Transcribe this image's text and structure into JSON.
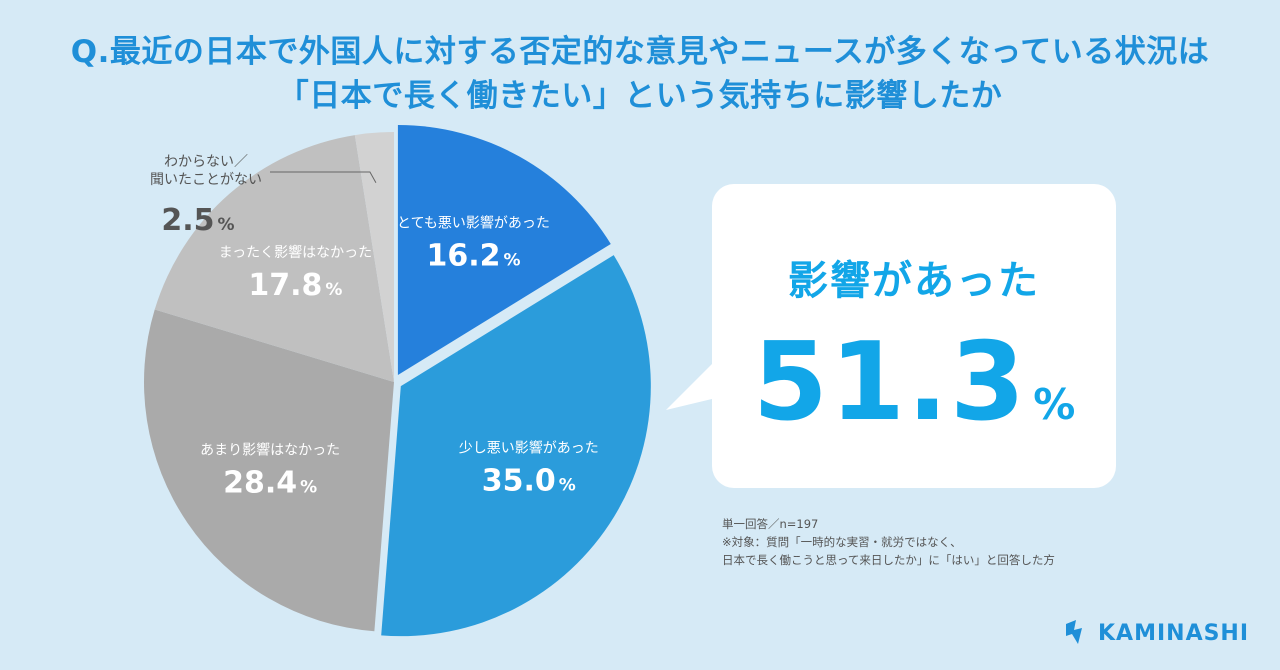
{
  "title": {
    "line1": "Q.最近の日本で外国人に対する否定的な意見やニュースが多くなっている状況は",
    "line2": "「日本で長く働きたい」という気持ちに影響したか"
  },
  "chart_data": {
    "type": "pie",
    "slices": [
      {
        "label": "とても悪い影響があった",
        "value": 16.2,
        "display": "16.2",
        "color": "#2580dc"
      },
      {
        "label": "少し悪い影響があった",
        "value": 35.0,
        "display": "35.0",
        "color": "#2b9cdb"
      },
      {
        "label": "あまり影響はなかった",
        "value": 28.4,
        "display": "28.4",
        "color": "#aaaaaa"
      },
      {
        "label": "まったく影響はなかった",
        "value": 17.8,
        "display": "17.8",
        "color": "#c0c0c0"
      },
      {
        "label_lines": [
          "わからない／",
          "聞いたことがない"
        ],
        "value": 2.5,
        "display": "2.5",
        "color": "#d2d2d2"
      }
    ],
    "percent_sign": "%"
  },
  "callout": {
    "heading": "影響があった",
    "value": "51.3",
    "unit": "%"
  },
  "notes": [
    "単一回答／n=197",
    "※対象：質問「一時的な実習・就労ではなく、",
    "日本で長く働こうと思って来日したか」に「はい」と回答した方"
  ],
  "logo": {
    "text": "KAMINASHI"
  },
  "colors": {
    "background": "#d6eaf6",
    "accent": "#1f8fd8",
    "callout_text": "#12a6e8"
  }
}
